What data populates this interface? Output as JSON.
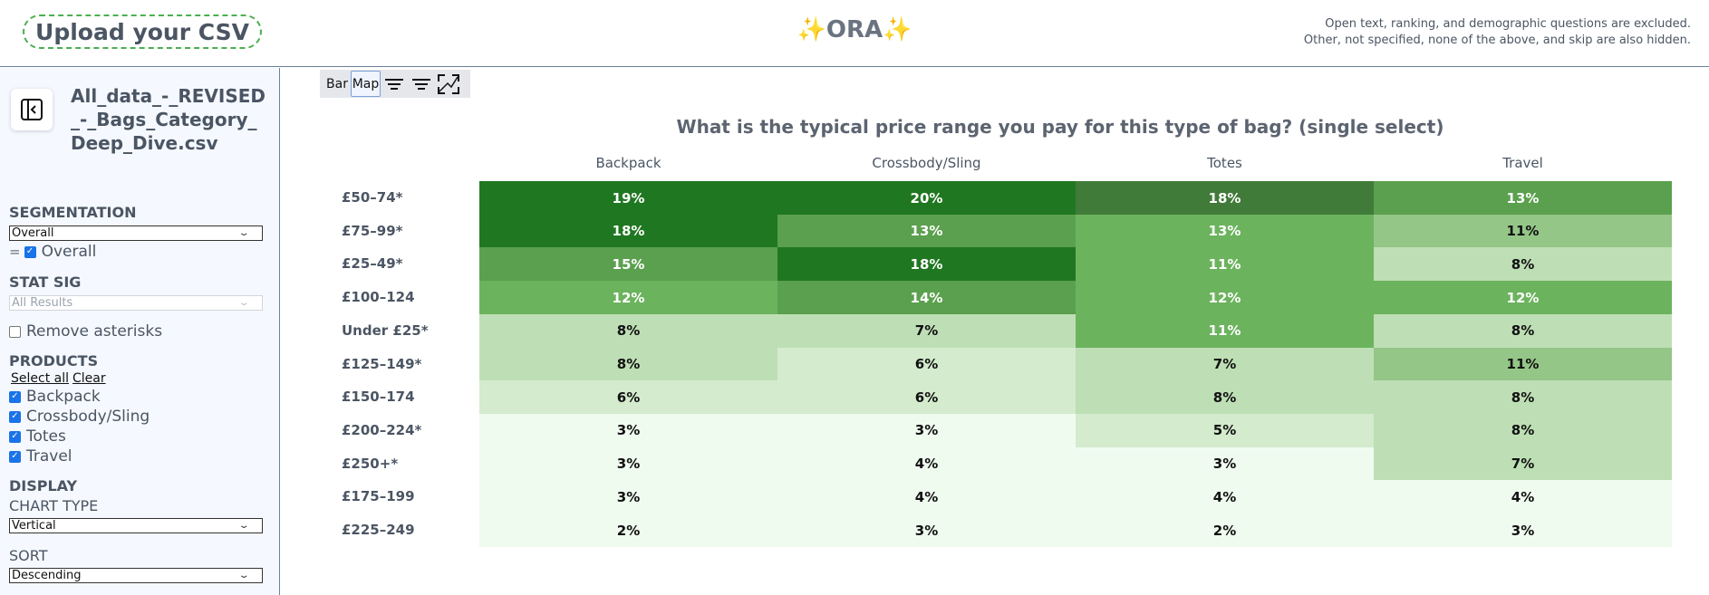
{
  "header": {
    "upload_label": "Upload your CSV",
    "logo_sparkle": "✨",
    "logo_text": "ORA",
    "notice_line1": "Open text, ranking, and demographic questions are excluded.",
    "notice_line2": "Other, not specified, none of the above, and skip are also hidden."
  },
  "sidebar": {
    "file_name": "All_data_-_REVISED_-_Bags_Category_Deep_Dive.csv",
    "segmentation_title": "SEGMENTATION",
    "segmentation_value": "Overall",
    "segment_eq": "=",
    "segment_check_label": "Overall",
    "statsig_title": "STAT SIG",
    "statsig_value": "All Results",
    "remove_asterisks_label": "Remove asterisks",
    "products_title": "PRODUCTS",
    "select_all": "Select all",
    "clear": "Clear",
    "products": [
      "Backpack",
      "Crossbody/Sling",
      "Totes",
      "Travel"
    ],
    "display_title": "DISPLAY",
    "chart_type_label": "CHART TYPE",
    "chart_type_value": "Vertical",
    "sort_label": "SORT",
    "sort_value": "Descending"
  },
  "toolbar": {
    "bar_label": "Bar",
    "map_label": "Map"
  },
  "chart_data": {
    "type": "heatmap",
    "title": "What is the typical price range you pay for this type of bag? (single select)",
    "columns": [
      "Backpack",
      "Crossbody/Sling",
      "Totes",
      "Travel"
    ],
    "rows": [
      "£50–74*",
      "£75–99*",
      "£25–49*",
      "£100–124",
      "Under £25*",
      "£125–149*",
      "£150–174",
      "£200–224*",
      "£250+*",
      "£175–199",
      "£225–249"
    ],
    "labels": [
      [
        "19%",
        "20%",
        "18%",
        "13%"
      ],
      [
        "18%",
        "13%",
        "13%",
        "11%"
      ],
      [
        "15%",
        "18%",
        "11%",
        "8%"
      ],
      [
        "12%",
        "14%",
        "12%",
        "12%"
      ],
      [
        "8%",
        "7%",
        "11%",
        "8%"
      ],
      [
        "8%",
        "6%",
        "7%",
        "11%"
      ],
      [
        "6%",
        "6%",
        "8%",
        "8%"
      ],
      [
        "3%",
        "3%",
        "5%",
        "8%"
      ],
      [
        "3%",
        "4%",
        "3%",
        "7%"
      ],
      [
        "3%",
        "4%",
        "4%",
        "4%"
      ],
      [
        "2%",
        "3%",
        "2%",
        "3%"
      ]
    ],
    "values": [
      [
        19,
        20,
        18,
        13
      ],
      [
        18,
        13,
        13,
        11
      ],
      [
        15,
        18,
        11,
        8
      ],
      [
        12,
        14,
        12,
        12
      ],
      [
        8,
        7,
        11,
        8
      ],
      [
        8,
        6,
        7,
        11
      ],
      [
        6,
        6,
        8,
        8
      ],
      [
        3,
        3,
        5,
        8
      ],
      [
        3,
        4,
        3,
        7
      ],
      [
        3,
        4,
        4,
        4
      ],
      [
        2,
        3,
        2,
        3
      ]
    ],
    "colors": [
      [
        "#207721",
        "#207721",
        "#417b39",
        "#5ba04e"
      ],
      [
        "#207721",
        "#5ba04e",
        "#6cb35e",
        "#94c687"
      ],
      [
        "#5ba04e",
        "#207721",
        "#6cb35e",
        "#bedfb5"
      ],
      [
        "#6cb35e",
        "#5ba04e",
        "#6cb35e",
        "#6cb35e"
      ],
      [
        "#bedfb5",
        "#bedfb5",
        "#6cb35e",
        "#bedfb5"
      ],
      [
        "#bedfb5",
        "#d4ebcd",
        "#bedfb5",
        "#94c687"
      ],
      [
        "#d4ebcd",
        "#d4ebcd",
        "#bedfb5",
        "#bedfb5"
      ],
      [
        "#f0fbf0",
        "#f0fbf0",
        "#d4ebcd",
        "#bedfb5"
      ],
      [
        "#f0fbf0",
        "#f0fbf0",
        "#f0fbf0",
        "#bedfb5"
      ],
      [
        "#f0fbf0",
        "#f0fbf0",
        "#f0fbf0",
        "#f0fbf0"
      ],
      [
        "#f0fbf0",
        "#f0fbf0",
        "#f0fbf0",
        "#f0fbf0"
      ]
    ],
    "text_colors": [
      [
        "#ffffff",
        "#ffffff",
        "#ffffff",
        "#ffffff"
      ],
      [
        "#ffffff",
        "#ffffff",
        "#ffffff",
        "#111111"
      ],
      [
        "#ffffff",
        "#ffffff",
        "#ffffff",
        "#111111"
      ],
      [
        "#ffffff",
        "#ffffff",
        "#ffffff",
        "#ffffff"
      ],
      [
        "#111111",
        "#111111",
        "#ffffff",
        "#111111"
      ],
      [
        "#111111",
        "#111111",
        "#111111",
        "#111111"
      ],
      [
        "#111111",
        "#111111",
        "#111111",
        "#111111"
      ],
      [
        "#111111",
        "#111111",
        "#111111",
        "#111111"
      ],
      [
        "#111111",
        "#111111",
        "#111111",
        "#111111"
      ],
      [
        "#111111",
        "#111111",
        "#111111",
        "#111111"
      ],
      [
        "#111111",
        "#111111",
        "#111111",
        "#111111"
      ]
    ]
  }
}
